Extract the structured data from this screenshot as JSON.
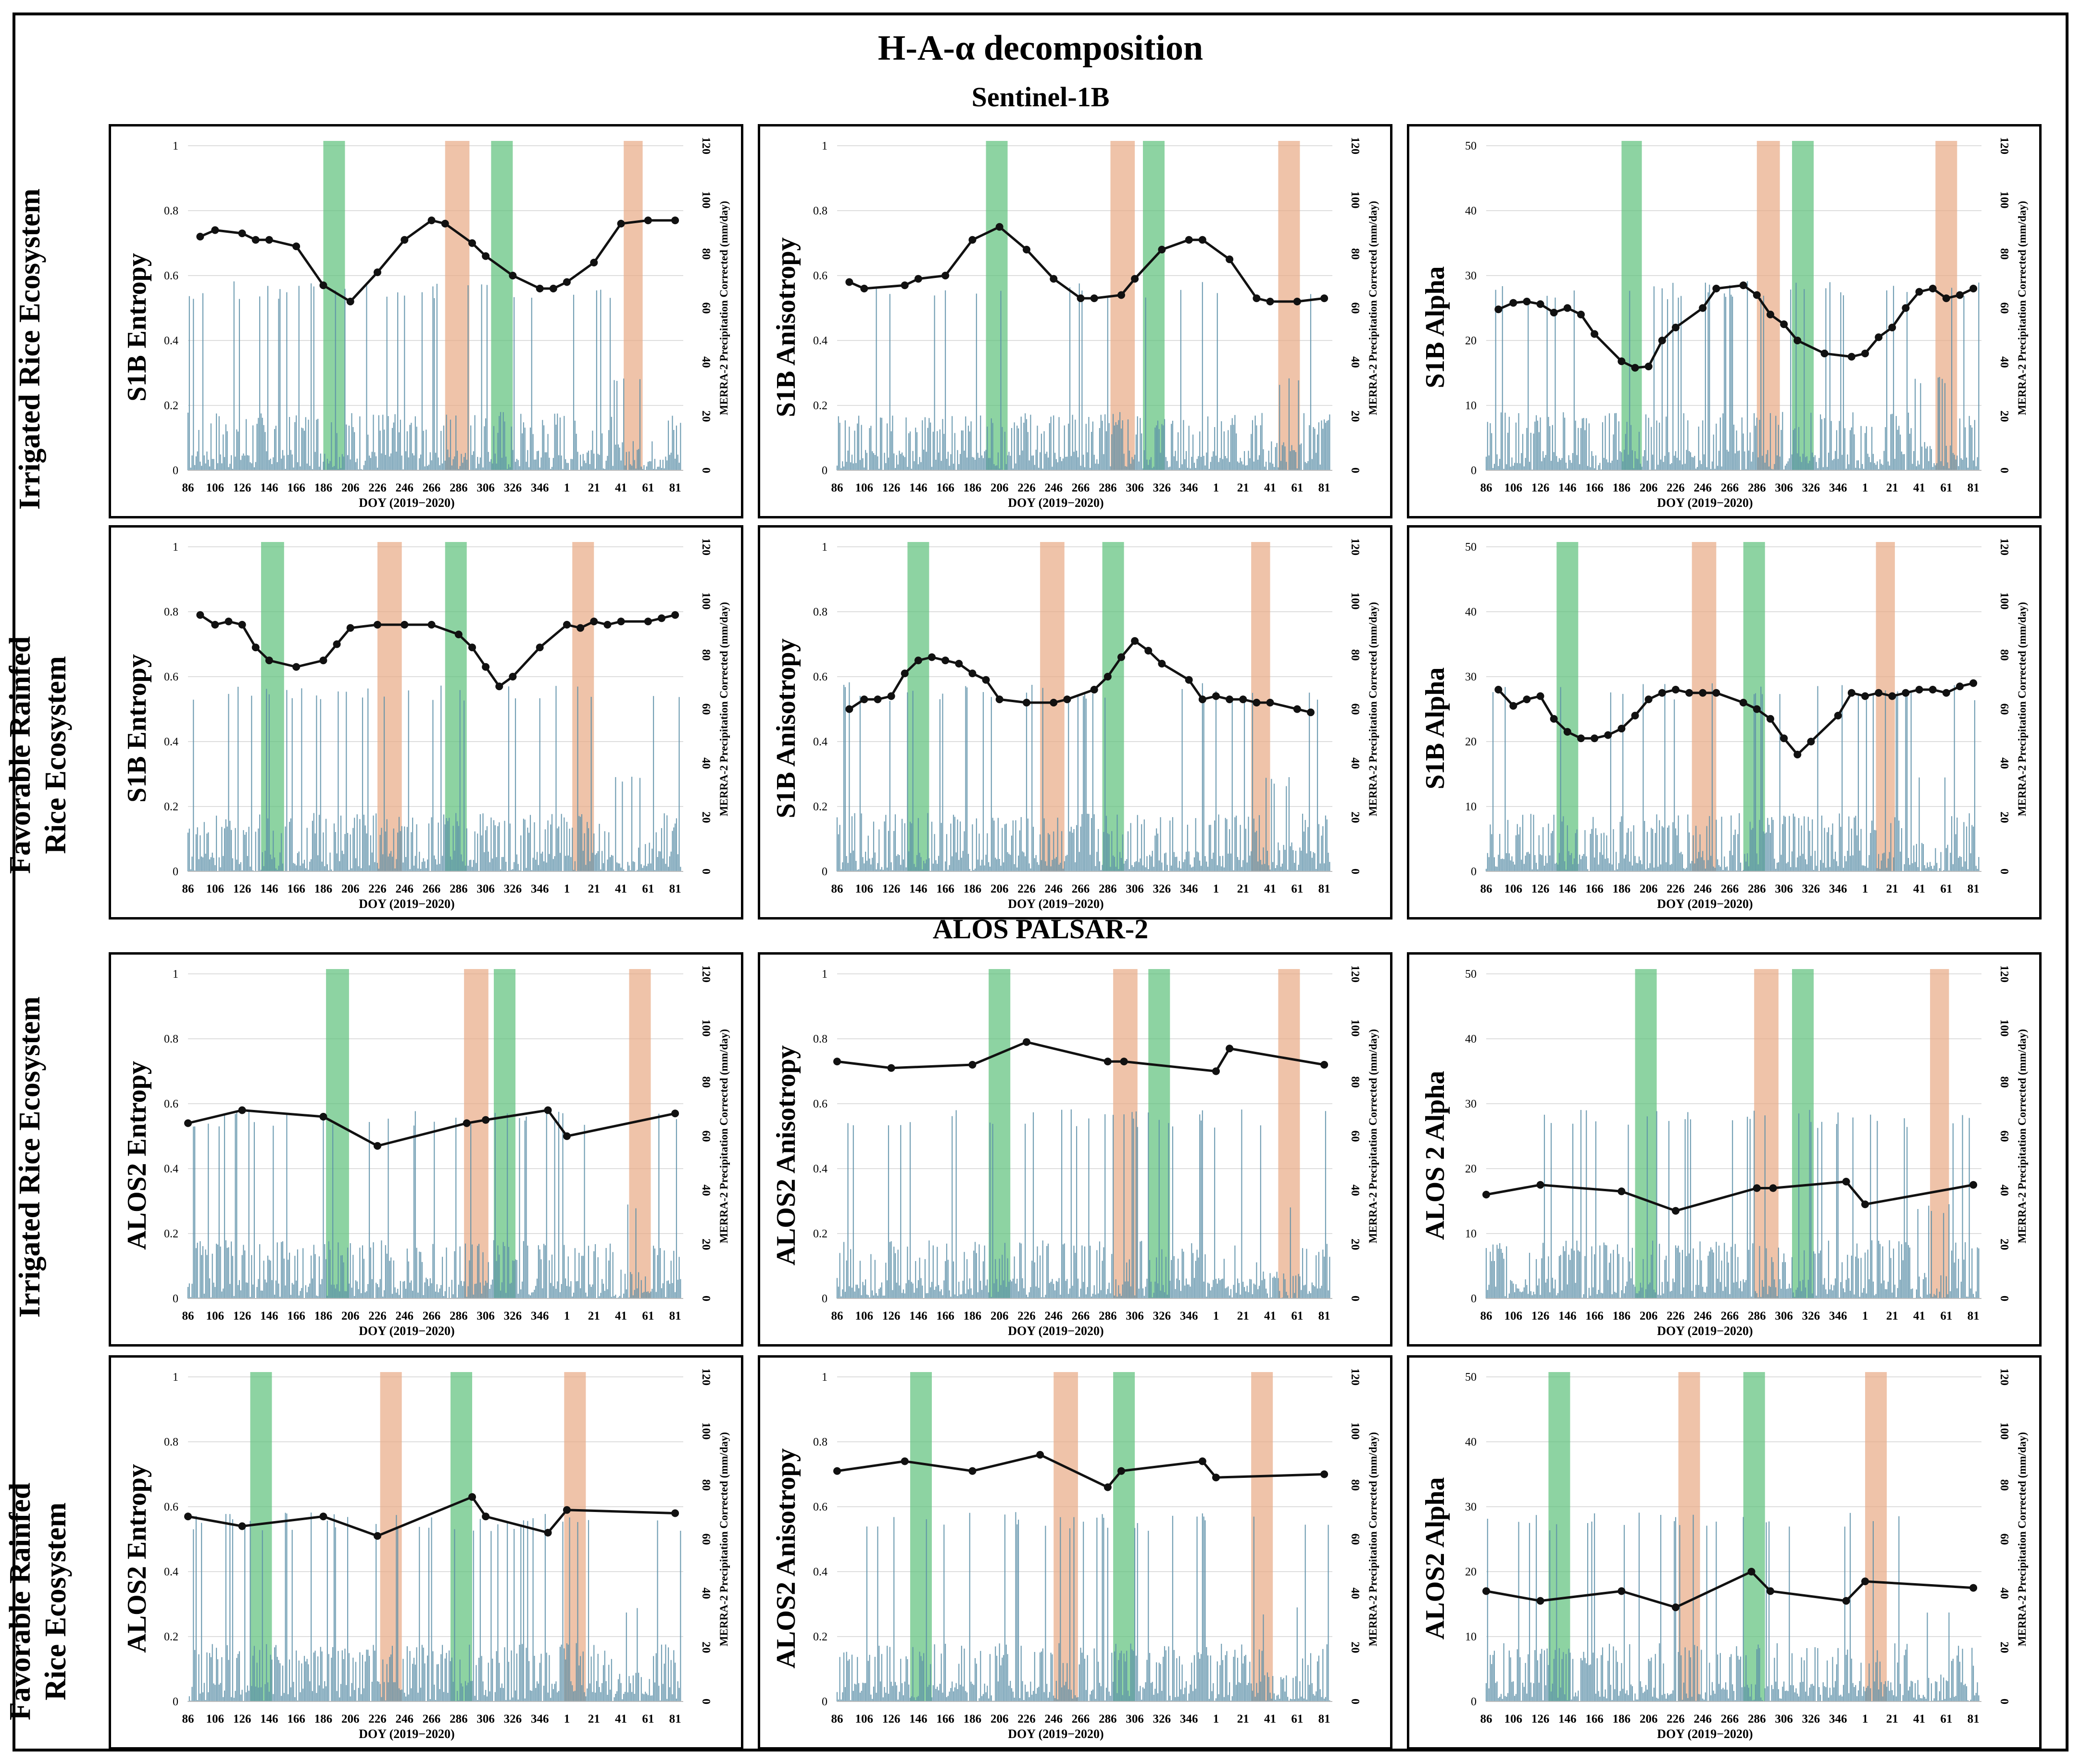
{
  "title": "H-A-α decomposition",
  "sections": [
    "Sentinel-1B",
    "ALOS PALSAR-2"
  ],
  "row_labels": [
    "Irrigated Rice Ecosystem",
    "Favorable Rainfed Rice Ecosystem",
    "Irrigated Rice Ecosystem",
    "Favorable Rainfed Rice Ecosystem"
  ],
  "common": {
    "xlabel": "DOY (2019−2020)",
    "y2label": "MERRA-2 Precipitation Corrected (mm/day)",
    "x_tick_labels": [
      "86",
      "106",
      "126",
      "146",
      "166",
      "186",
      "206",
      "226",
      "246",
      "266",
      "286",
      "306",
      "326",
      "346",
      "1",
      "21",
      "41",
      "61",
      "81"
    ],
    "y2_tick_labels": [
      "0",
      "20",
      "40",
      "60",
      "80",
      "100",
      "120"
    ],
    "y2lim": [
      0,
      120
    ]
  },
  "colors": {
    "line": "#111111",
    "precip": "#5b8fa8",
    "green_band": "#5cc07a",
    "orange_band": "#e8a985"
  },
  "chart_data": [
    {
      "type": "line",
      "ylabel": "S1B Entropy",
      "ylim": [
        0,
        1
      ],
      "yticks": [
        "0",
        "0.2",
        "0.4",
        "0.6",
        "0.8",
        "1"
      ],
      "x": [
        95,
        106,
        126,
        136,
        146,
        166,
        186,
        206,
        226,
        246,
        266,
        276,
        296,
        306,
        326,
        346,
        356,
        366,
        386,
        406,
        426,
        446
      ],
      "values": [
        0.72,
        0.74,
        0.73,
        0.71,
        0.71,
        0.69,
        0.57,
        0.52,
        0.61,
        0.71,
        0.77,
        0.76,
        0.7,
        0.66,
        0.6,
        0.56,
        0.56,
        0.58,
        0.64,
        0.76,
        0.77,
        0.77
      ],
      "green_bands": [
        [
          186,
          202
        ],
        [
          310,
          326
        ]
      ],
      "orange_bands": [
        [
          276,
          294
        ],
        [
          408,
          422
        ]
      ]
    },
    {
      "type": "line",
      "ylabel": "S1B Anisotropy",
      "ylim": [
        0,
        1
      ],
      "yticks": [
        "0",
        "0.2",
        "0.4",
        "0.6",
        "0.8",
        "1"
      ],
      "x": [
        95,
        106,
        136,
        146,
        166,
        186,
        206,
        226,
        246,
        266,
        276,
        296,
        306,
        326,
        346,
        356,
        376,
        396,
        406,
        426,
        446
      ],
      "values": [
        0.58,
        0.56,
        0.57,
        0.59,
        0.6,
        0.71,
        0.75,
        0.68,
        0.59,
        0.53,
        0.53,
        0.54,
        0.59,
        0.68,
        0.71,
        0.71,
        0.65,
        0.53,
        0.52,
        0.52,
        0.53
      ],
      "green_bands": [
        [
          196,
          212
        ],
        [
          312,
          328
        ]
      ],
      "orange_bands": [
        [
          288,
          306
        ],
        [
          412,
          428
        ]
      ]
    },
    {
      "type": "line",
      "ylabel": "S1B Alpha",
      "ylim": [
        0,
        50
      ],
      "yticks": [
        "0",
        "10",
        "20",
        "30",
        "40",
        "50"
      ],
      "x": [
        95,
        106,
        116,
        126,
        136,
        146,
        156,
        166,
        186,
        196,
        206,
        216,
        226,
        246,
        256,
        276,
        286,
        296,
        306,
        316,
        336,
        356,
        366,
        376,
        386,
        396,
        406,
        416,
        426,
        436,
        446
      ],
      "values": [
        24.8,
        25.8,
        26,
        25.6,
        24.3,
        25,
        24,
        21,
        16.8,
        15.8,
        16,
        20,
        22,
        25,
        28,
        28.5,
        27,
        24,
        22.5,
        20,
        18,
        17.5,
        18,
        20.5,
        22,
        25,
        27.5,
        28,
        26.5,
        27,
        28
      ],
      "green_bands": [
        [
          186,
          201
        ],
        [
          312,
          328
        ]
      ],
      "orange_bands": [
        [
          286,
          303
        ],
        [
          418,
          434
        ]
      ]
    },
    {
      "type": "line",
      "ylabel": "S1B Entropy",
      "ylim": [
        0,
        1
      ],
      "yticks": [
        "0",
        "0.2",
        "0.4",
        "0.6",
        "0.8",
        "1"
      ],
      "x": [
        95,
        106,
        116,
        126,
        136,
        146,
        166,
        186,
        196,
        206,
        226,
        246,
        266,
        286,
        296,
        306,
        316,
        326,
        346,
        366,
        376,
        386,
        396,
        406,
        426,
        436,
        446
      ],
      "values": [
        0.79,
        0.76,
        0.77,
        0.76,
        0.69,
        0.65,
        0.63,
        0.65,
        0.7,
        0.75,
        0.76,
        0.76,
        0.76,
        0.73,
        0.69,
        0.63,
        0.57,
        0.6,
        0.69,
        0.76,
        0.75,
        0.77,
        0.76,
        0.77,
        0.77,
        0.78,
        0.79
      ],
      "green_bands": [
        [
          140,
          157
        ],
        [
          276,
          292
        ]
      ],
      "orange_bands": [
        [
          226,
          244
        ],
        [
          370,
          386
        ]
      ]
    },
    {
      "type": "line",
      "ylabel": "S1B Anisotropy",
      "ylim": [
        0,
        1
      ],
      "yticks": [
        "0",
        "0.2",
        "0.4",
        "0.6",
        "0.8",
        "1"
      ],
      "x": [
        95,
        106,
        116,
        126,
        136,
        146,
        156,
        166,
        176,
        186,
        196,
        206,
        226,
        246,
        256,
        276,
        286,
        296,
        306,
        316,
        326,
        346,
        356,
        366,
        376,
        386,
        396,
        406,
        426,
        436
      ],
      "values": [
        0.5,
        0.53,
        0.53,
        0.54,
        0.61,
        0.65,
        0.66,
        0.65,
        0.64,
        0.61,
        0.59,
        0.53,
        0.52,
        0.52,
        0.53,
        0.56,
        0.6,
        0.66,
        0.71,
        0.68,
        0.64,
        0.59,
        0.53,
        0.54,
        0.53,
        0.53,
        0.52,
        0.52,
        0.5,
        0.49
      ],
      "green_bands": [
        [
          138,
          154
        ],
        [
          282,
          298
        ]
      ],
      "orange_bands": [
        [
          236,
          254
        ],
        [
          392,
          406
        ]
      ]
    },
    {
      "type": "line",
      "ylabel": "S1B Alpha",
      "ylim": [
        0,
        50
      ],
      "yticks": [
        "0",
        "10",
        "20",
        "30",
        "40",
        "50"
      ],
      "x": [
        95,
        106,
        116,
        126,
        136,
        146,
        156,
        166,
        176,
        186,
        196,
        206,
        216,
        226,
        236,
        246,
        256,
        276,
        286,
        296,
        306,
        316,
        326,
        346,
        356,
        366,
        376,
        386,
        396,
        406,
        416,
        426,
        436,
        446
      ],
      "values": [
        28,
        25.5,
        26.5,
        27,
        23.5,
        21.5,
        20.5,
        20.5,
        21,
        22,
        24,
        26.5,
        27.5,
        28,
        27.5,
        27.5,
        27.5,
        26,
        25,
        23.5,
        20.5,
        18,
        20,
        24,
        27.5,
        27,
        27.5,
        27,
        27.5,
        28,
        28,
        27.5,
        28.5,
        29
      ],
      "green_bands": [
        [
          138,
          154
        ],
        [
          276,
          292
        ]
      ],
      "orange_bands": [
        [
          238,
          256
        ],
        [
          374,
          388
        ]
      ]
    },
    {
      "type": "line",
      "ylabel": "ALOS2 Entropy",
      "ylim": [
        0,
        1
      ],
      "yticks": [
        "0",
        "0.2",
        "0.4",
        "0.6",
        "0.8",
        "1"
      ],
      "x": [
        86,
        126,
        186,
        226,
        292,
        306,
        352,
        366,
        446
      ],
      "values": [
        0.54,
        0.58,
        0.56,
        0.47,
        0.54,
        0.55,
        0.58,
        0.5,
        0.57
      ],
      "green_bands": [
        [
          188,
          205
        ],
        [
          312,
          328
        ]
      ],
      "orange_bands": [
        [
          290,
          308
        ],
        [
          412,
          428
        ]
      ]
    },
    {
      "type": "line",
      "ylabel": "ALOS2 Anisotropy",
      "ylim": [
        0,
        1
      ],
      "yticks": [
        "0",
        "0.2",
        "0.4",
        "0.6",
        "0.8",
        "1"
      ],
      "x": [
        86,
        126,
        186,
        226,
        286,
        298,
        366,
        376,
        446
      ],
      "values": [
        0.73,
        0.71,
        0.72,
        0.79,
        0.73,
        0.73,
        0.7,
        0.77,
        0.72
      ],
      "green_bands": [
        [
          198,
          214
        ],
        [
          316,
          332
        ]
      ],
      "orange_bands": [
        [
          290,
          308
        ],
        [
          412,
          428
        ]
      ]
    },
    {
      "type": "line",
      "ylabel": "ALOS 2 Alpha",
      "ylim": [
        0,
        50
      ],
      "yticks": [
        "0",
        "10",
        "20",
        "30",
        "40",
        "50"
      ],
      "x": [
        86,
        126,
        186,
        226,
        286,
        298,
        352,
        366,
        446
      ],
      "values": [
        16,
        17.5,
        16.5,
        13.5,
        17,
        17,
        18,
        14.5,
        17.5
      ],
      "green_bands": [
        [
          196,
          212
        ],
        [
          312,
          328
        ]
      ],
      "orange_bands": [
        [
          284,
          302
        ],
        [
          414,
          428
        ]
      ]
    },
    {
      "type": "line",
      "ylabel": "ALOS2 Entropy",
      "ylim": [
        0,
        1
      ],
      "yticks": [
        "0",
        "0.2",
        "0.4",
        "0.6",
        "0.8",
        "1"
      ],
      "x": [
        86,
        126,
        186,
        226,
        296,
        306,
        352,
        366,
        446
      ],
      "values": [
        0.57,
        0.54,
        0.57,
        0.51,
        0.63,
        0.57,
        0.52,
        0.59,
        0.58
      ],
      "green_bands": [
        [
          132,
          148
        ],
        [
          280,
          296
        ]
      ],
      "orange_bands": [
        [
          228,
          244
        ],
        [
          364,
          380
        ]
      ]
    },
    {
      "type": "line",
      "ylabel": "ALOS2 Anisotropy",
      "ylim": [
        0,
        1
      ],
      "yticks": [
        "0",
        "0.2",
        "0.4",
        "0.6",
        "0.8",
        "1"
      ],
      "x": [
        86,
        136,
        186,
        236,
        286,
        296,
        356,
        366,
        446
      ],
      "values": [
        0.71,
        0.74,
        0.71,
        0.76,
        0.66,
        0.71,
        0.74,
        0.69,
        0.7
      ],
      "green_bands": [
        [
          140,
          156
        ],
        [
          290,
          306
        ]
      ],
      "orange_bands": [
        [
          246,
          264
        ],
        [
          392,
          408
        ]
      ]
    },
    {
      "type": "line",
      "ylabel": "ALOS2 Alpha",
      "ylim": [
        0,
        50
      ],
      "yticks": [
        "0",
        "10",
        "20",
        "30",
        "40",
        "50"
      ],
      "x": [
        86,
        126,
        186,
        226,
        282,
        296,
        352,
        366,
        446
      ],
      "values": [
        17,
        15.5,
        17,
        14.5,
        20,
        17,
        15.5,
        18.5,
        17.5
      ],
      "green_bands": [
        [
          132,
          148
        ],
        [
          276,
          292
        ]
      ],
      "orange_bands": [
        [
          228,
          244
        ],
        [
          366,
          382
        ]
      ]
    }
  ]
}
